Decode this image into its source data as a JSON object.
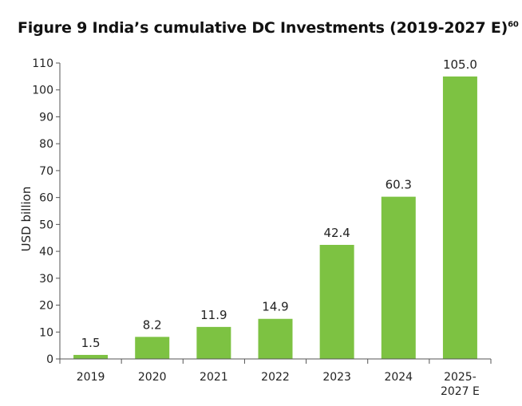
{
  "title": "Figure 9 India’s cumulative DC Investments (2019-2027 E)",
  "title_superscript": "60",
  "chart_data": {
    "type": "bar",
    "title": "Figure 9 India’s cumulative DC Investments (2019-2027 E)",
    "xlabel": "",
    "ylabel": "USD billion",
    "ylim": [
      0,
      110
    ],
    "yticks": [
      0,
      10,
      20,
      30,
      40,
      50,
      60,
      70,
      80,
      90,
      100,
      110
    ],
    "categories": [
      [
        "2019"
      ],
      [
        "2020"
      ],
      [
        "2021"
      ],
      [
        "2022"
      ],
      [
        "2023"
      ],
      [
        "2024"
      ],
      [
        "2025-",
        "2027 E"
      ]
    ],
    "values": [
      1.5,
      8.2,
      11.9,
      14.9,
      42.4,
      60.3,
      105.0
    ],
    "value_labels": [
      "1.5",
      "8.2",
      "11.9",
      "14.9",
      "42.4",
      "60.3",
      "105.0"
    ],
    "bar_color": "#7dc242",
    "axis_color": "#555555",
    "grid": false
  }
}
